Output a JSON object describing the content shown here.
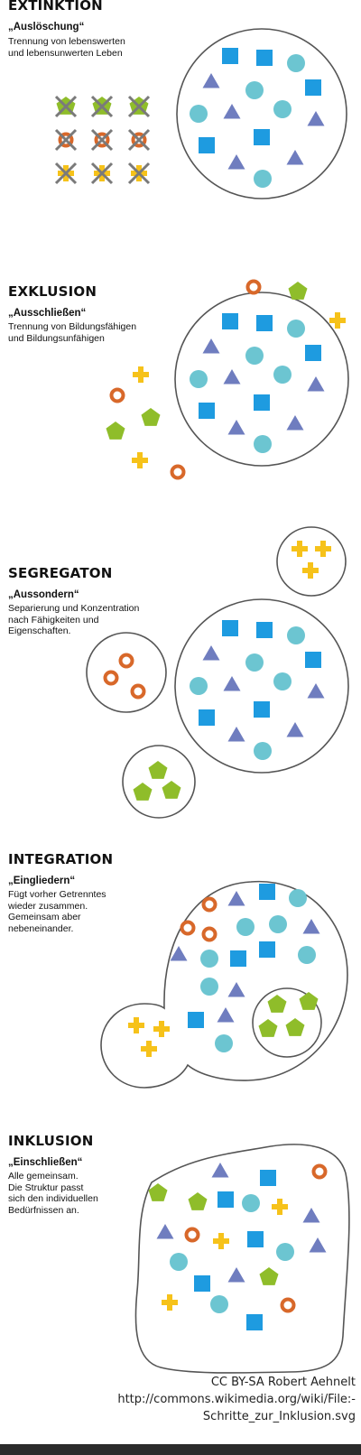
{
  "colors": {
    "square": "#1e9be0",
    "circle": "#6cc5d1",
    "triangle": "#6f7dbf",
    "pentagon": "#8fbd2a",
    "ring": "#d8682a",
    "cross": "#f6c21a",
    "cross_x": "#7a7a7a",
    "outline": "#555555"
  },
  "sections": [
    {
      "title": "EXTINKTION",
      "subtitle": "„Auslöschung“",
      "description": "Trennung von lebenswerten\nund lebensunwerten Leben"
    },
    {
      "title": "EXKLUSION",
      "subtitle": "„Ausschließen“",
      "description": "Trennung von Bildungsfähigen\nund Bildungsunfähigen"
    },
    {
      "title": "SEGREGATON",
      "subtitle": "„Aussondern“",
      "description": "Separierung und Konzentration\nnach Fähigkeiten und\nEigenschaften."
    },
    {
      "title": "INTEGRATION",
      "subtitle": "„Eingliedern“",
      "description": "Fügt vorher Getrenntes\nwieder zusammen.\nGemeinsam aber\nnebeneinander."
    },
    {
      "title": "INKLUSION",
      "subtitle": "„Einschließen“",
      "description": "Alle gemeinsam.\nDie Struktur passt\nsich den individuellen\nBedürfnissen an."
    }
  ],
  "credit": "CC BY-SA Robert Aehnelt\nhttp://commons.wikimedia.org/wiki/File:-\nSchritte_zur_Inklusion.svg"
}
